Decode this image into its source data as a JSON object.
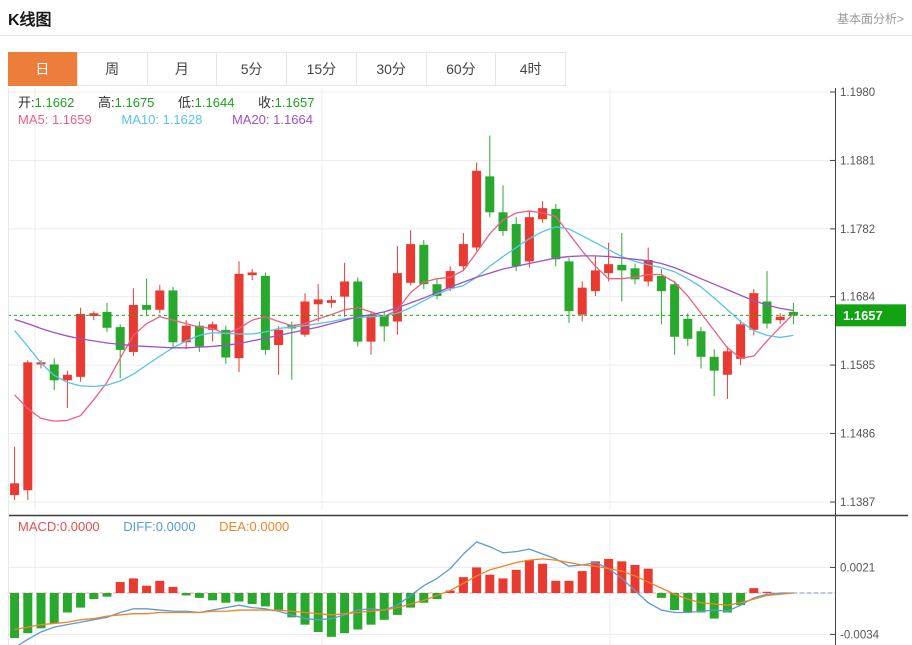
{
  "page": {
    "title": "K线图",
    "link_right": "基本面分析>"
  },
  "tabs": {
    "items": [
      "日",
      "周",
      "月",
      "5分",
      "15分",
      "30分",
      "60分",
      "4时"
    ],
    "active_index": 0
  },
  "legend": {
    "open_label": "开:",
    "open": "1.1662",
    "high_label": "高:",
    "high": "1.1675",
    "low_label": "低:",
    "low": "1.1644",
    "close_label": "收:",
    "close": "1.1657",
    "ma5_label": "MA5:",
    "ma5": "1.1659",
    "ma10_label": "MA10:",
    "ma10": "1.1628",
    "ma20_label": "MA20:",
    "ma20": "1.1664"
  },
  "macd_legend": {
    "macd_label": "MACD:",
    "macd": "0.0000",
    "diff_label": "DIFF:",
    "diff": "0.0000",
    "dea_label": "DEA:",
    "dea": "0.0000"
  },
  "colors": {
    "up": "#e93a32",
    "down": "#28a92e",
    "ma5": "#ee5e85",
    "ma10": "#58c3ea",
    "ma20": "#9e52c6",
    "diff": "#5b9bd5",
    "dea": "#f08424",
    "price_tag_bg": "#12a312",
    "value_green": "#1ba31b",
    "tab_active_bg": "#ed7d3a",
    "grid": "#ececec",
    "axis": "#444444",
    "link": "#999999"
  },
  "chart_data": {
    "type": "candlestick",
    "title": "K线图",
    "period_selected": "日",
    "price_axis_ticks": [
      1.198,
      1.1881,
      1.1782,
      1.1684,
      1.1585,
      1.1486,
      1.1387
    ],
    "current_price": 1.1657,
    "latest": {
      "open": 1.1662,
      "high": 1.1675,
      "low": 1.1644,
      "close": 1.1657
    },
    "candles": [
      [
        1.1397,
        1.1467,
        1.139,
        1.1414
      ],
      [
        1.1404,
        1.1592,
        1.139,
        1.1589
      ],
      [
        1.1586,
        1.1592,
        1.158,
        1.1589
      ],
      [
        1.1586,
        1.1595,
        1.1549,
        1.1563
      ],
      [
        1.1563,
        1.1577,
        1.1523,
        1.1571
      ],
      [
        1.1568,
        1.1668,
        1.1561,
        1.1659
      ],
      [
        1.1656,
        1.1663,
        1.165,
        1.166
      ],
      [
        1.1662,
        1.1675,
        1.1633,
        1.1639
      ],
      [
        1.164,
        1.1644,
        1.1566,
        1.1607
      ],
      [
        1.1604,
        1.1696,
        1.1598,
        1.1672
      ],
      [
        1.1672,
        1.171,
        1.1656,
        1.1665
      ],
      [
        1.1665,
        1.1701,
        1.166,
        1.1693
      ],
      [
        1.1693,
        1.1698,
        1.161,
        1.1618
      ],
      [
        1.1618,
        1.165,
        1.1608,
        1.1642
      ],
      [
        1.1642,
        1.1648,
        1.1604,
        1.1612
      ],
      [
        1.1636,
        1.1648,
        1.1619,
        1.1644
      ],
      [
        1.1636,
        1.1642,
        1.1587,
        1.1596
      ],
      [
        1.1595,
        1.1735,
        1.1575,
        1.1717
      ],
      [
        1.1715,
        1.1724,
        1.1708,
        1.1719
      ],
      [
        1.1714,
        1.1719,
        1.16,
        1.1607
      ],
      [
        1.1614,
        1.1641,
        1.1571,
        1.1636
      ],
      [
        1.1643,
        1.1648,
        1.1564,
        1.1638
      ],
      [
        1.1629,
        1.1689,
        1.1626,
        1.1677
      ],
      [
        1.1673,
        1.1702,
        1.1648,
        1.168
      ],
      [
        1.1675,
        1.1685,
        1.1668,
        1.1679
      ],
      [
        1.1684,
        1.1733,
        1.1655,
        1.1706
      ],
      [
        1.1706,
        1.1712,
        1.1612,
        1.1619
      ],
      [
        1.1619,
        1.1663,
        1.16,
        1.1658
      ],
      [
        1.1657,
        1.1662,
        1.1619,
        1.1641
      ],
      [
        1.1648,
        1.1757,
        1.1629,
        1.1718
      ],
      [
        1.1704,
        1.178,
        1.17,
        1.176
      ],
      [
        1.1759,
        1.1766,
        1.1695,
        1.1702
      ],
      [
        1.1702,
        1.1709,
        1.168,
        1.1685
      ],
      [
        1.1696,
        1.1728,
        1.1692,
        1.1721
      ],
      [
        1.1728,
        1.1776,
        1.1721,
        1.176
      ],
      [
        1.1755,
        1.1878,
        1.175,
        1.1866
      ],
      [
        1.1858,
        1.1917,
        1.1799,
        1.1806
      ],
      [
        1.1806,
        1.1845,
        1.1772,
        1.1779
      ],
      [
        1.1789,
        1.1799,
        1.1721,
        1.1728
      ],
      [
        1.1735,
        1.1808,
        1.1726,
        1.1799
      ],
      [
        1.1796,
        1.1822,
        1.1791,
        1.1812
      ],
      [
        1.1811,
        1.1818,
        1.1728,
        1.1738
      ],
      [
        1.1735,
        1.174,
        1.1646,
        1.1663
      ],
      [
        1.1658,
        1.1706,
        1.1648,
        1.1697
      ],
      [
        1.1692,
        1.1743,
        1.1685,
        1.1722
      ],
      [
        1.1718,
        1.1762,
        1.1706,
        1.1731
      ],
      [
        1.173,
        1.1776,
        1.1677,
        1.1722
      ],
      [
        1.1725,
        1.1732,
        1.1702,
        1.1709
      ],
      [
        1.1706,
        1.1755,
        1.1699,
        1.1737
      ],
      [
        1.1714,
        1.1724,
        1.1644,
        1.1692
      ],
      [
        1.1702,
        1.1707,
        1.16,
        1.1626
      ],
      [
        1.1652,
        1.166,
        1.1613,
        1.1623
      ],
      [
        1.1634,
        1.164,
        1.158,
        1.1597
      ],
      [
        1.1597,
        1.1608,
        1.154,
        1.1577
      ],
      [
        1.1571,
        1.1612,
        1.1536,
        1.1605
      ],
      [
        1.1594,
        1.165,
        1.1585,
        1.1644
      ],
      [
        1.1636,
        1.1695,
        1.1628,
        1.1689
      ],
      [
        1.1677,
        1.1721,
        1.1638,
        1.1645
      ],
      [
        1.165,
        1.166,
        1.1645,
        1.1655
      ],
      [
        1.1662,
        1.1675,
        1.1644,
        1.1657
      ]
    ],
    "ma5": [
      1.1542,
      1.1522,
      1.1508,
      1.1504,
      1.1505,
      1.1512,
      1.1535,
      1.156,
      1.1595,
      1.1628,
      1.1645,
      1.1655,
      1.165,
      1.1645,
      1.164,
      1.1638,
      1.163,
      1.1638,
      1.165,
      1.1655,
      1.1648,
      1.1642,
      1.1645,
      1.1652,
      1.1658,
      1.1665,
      1.1668,
      1.1662,
      1.1655,
      1.1665,
      1.169,
      1.1705,
      1.171,
      1.1712,
      1.1722,
      1.1748,
      1.1775,
      1.1795,
      1.1805,
      1.1808,
      1.1805,
      1.18,
      1.1775,
      1.175,
      1.1728,
      1.171,
      1.171,
      1.1712,
      1.1716,
      1.1716,
      1.1705,
      1.1685,
      1.166,
      1.1635,
      1.161,
      1.1595,
      1.1598,
      1.162,
      1.164,
      1.1659
    ],
    "ma10": [
      1.1635,
      1.1612,
      1.1588,
      1.157,
      1.156,
      1.1555,
      1.1554,
      1.1556,
      1.1562,
      1.1572,
      1.1585,
      1.1598,
      1.161,
      1.162,
      1.1628,
      1.1632,
      1.1631,
      1.163,
      1.163,
      1.1633,
      1.1638,
      1.164,
      1.1642,
      1.1645,
      1.1648,
      1.1652,
      1.1654,
      1.1655,
      1.1656,
      1.166,
      1.1668,
      1.1678,
      1.1688,
      1.1695,
      1.17,
      1.1712,
      1.1728,
      1.1742,
      1.1755,
      1.1768,
      1.1778,
      1.1785,
      1.1782,
      1.1772,
      1.1762,
      1.1752,
      1.1742,
      1.1735,
      1.173,
      1.1726,
      1.172,
      1.171,
      1.1698,
      1.1682,
      1.1665,
      1.1648,
      1.1635,
      1.1628,
      1.1625,
      1.1628
    ],
    "ma20": [
      1.1651,
      1.1645,
      1.1638,
      1.1632,
      1.1627,
      1.1623,
      1.162,
      1.1617,
      1.1615,
      1.1613,
      1.1612,
      1.1611,
      1.161,
      1.161,
      1.1611,
      1.1612,
      1.1614,
      1.1616,
      1.162,
      1.1624,
      1.1628,
      1.1632,
      1.1636,
      1.164,
      1.1645,
      1.165,
      1.1655,
      1.1658,
      1.1662,
      1.1668,
      1.1675,
      1.1682,
      1.169,
      1.1698,
      1.1705,
      1.1712,
      1.1718,
      1.1724,
      1.1728,
      1.1732,
      1.1736,
      1.174,
      1.1742,
      1.1743,
      1.1743,
      1.1742,
      1.174,
      1.1738,
      1.1736,
      1.1732,
      1.1726,
      1.1718,
      1.171,
      1.1702,
      1.1694,
      1.1686,
      1.1678,
      1.1672,
      1.1667,
      1.1664
    ],
    "macd": {
      "axis_ticks": [
        0.0021,
        -0.0034
      ],
      "macd_value": 0.0,
      "diff_value": 0.0,
      "dea_value": 0.0,
      "bars": [
        -0.0037,
        -0.0033,
        -0.0029,
        -0.0025,
        -0.0016,
        -0.0012,
        -0.0005,
        -0.0003,
        0.0009,
        0.0012,
        0.0006,
        0.001,
        0.0005,
        -0.0002,
        -0.0004,
        -0.0006,
        -0.0008,
        -0.0007,
        -0.0009,
        -0.0011,
        -0.0014,
        -0.002,
        -0.0026,
        -0.0032,
        -0.0036,
        -0.0033,
        -0.003,
        -0.0026,
        -0.0022,
        -0.0018,
        -0.0012,
        -0.0008,
        -0.0005,
        0.0002,
        0.0013,
        0.0021,
        0.0015,
        0.0012,
        0.0019,
        0.0027,
        0.0024,
        0.001,
        0.001,
        0.0018,
        0.0026,
        0.0028,
        0.0026,
        0.0023,
        0.002,
        -0.0004,
        -0.0014,
        -0.0016,
        -0.0016,
        -0.0021,
        -0.0016,
        -0.001,
        0.0004,
        0.0001,
        0.0,
        0.0
      ],
      "diff": [
        -0.0045,
        -0.0038,
        -0.0032,
        -0.0028,
        -0.0026,
        -0.0024,
        -0.0022,
        -0.002,
        -0.0016,
        -0.0013,
        -0.0013,
        -0.0014,
        -0.0015,
        -0.0015,
        -0.0016,
        -0.0014,
        -0.0012,
        -0.001,
        -0.0012,
        -0.0013,
        -0.0015,
        -0.0018,
        -0.0021,
        -0.0022,
        -0.0021,
        -0.0018,
        -0.0014,
        -0.0013,
        -0.0014,
        -0.001,
        -0.0002,
        0.0006,
        0.0012,
        0.002,
        0.0032,
        0.0042,
        0.0038,
        0.0033,
        0.0034,
        0.0036,
        0.0032,
        0.0028,
        0.0022,
        0.0023,
        0.0025,
        0.002,
        0.0012,
        0.0002,
        -0.0008,
        -0.0014,
        -0.0016,
        -0.0016,
        -0.0015,
        -0.0014,
        -0.0015,
        -0.001,
        -0.0004,
        -0.0001,
        0.0,
        0.0
      ],
      "dea": [
        -0.003,
        -0.0028,
        -0.0026,
        -0.0025,
        -0.0024,
        -0.0022,
        -0.0021,
        -0.0019,
        -0.0018,
        -0.0017,
        -0.0017,
        -0.0016,
        -0.0016,
        -0.0016,
        -0.0016,
        -0.0015,
        -0.0015,
        -0.0014,
        -0.0014,
        -0.0014,
        -0.0014,
        -0.0015,
        -0.0016,
        -0.0017,
        -0.0018,
        -0.0017,
        -0.0016,
        -0.0015,
        -0.0014,
        -0.0012,
        -0.0009,
        -0.0006,
        -0.0002,
        0.0002,
        0.0008,
        0.0014,
        0.0019,
        0.0022,
        0.0025,
        0.0027,
        0.0028,
        0.0027,
        0.0025,
        0.0023,
        0.0022,
        0.002,
        0.0018,
        0.0014,
        0.0009,
        0.0004,
        -0.0001,
        -0.0005,
        -0.0008,
        -0.0009,
        -0.001,
        -0.0008,
        -0.0005,
        -0.0002,
        -0.0001,
        0.0
      ]
    }
  }
}
